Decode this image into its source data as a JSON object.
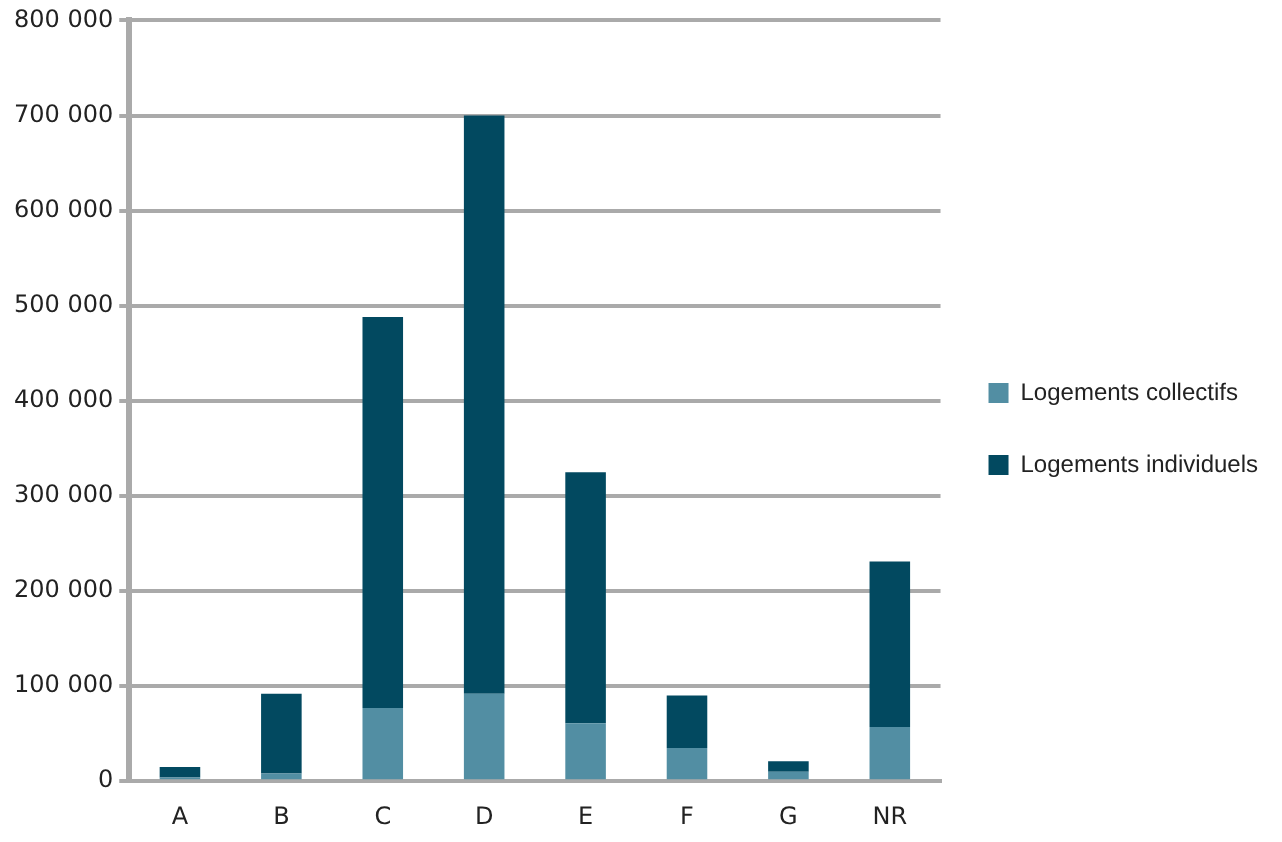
{
  "chart_data": {
    "type": "bar",
    "stacked": true,
    "categories": [
      "A",
      "B",
      "C",
      "D",
      "E",
      "F",
      "G",
      "NR"
    ],
    "series": [
      {
        "name": "Logements collectifs",
        "color": "#528ea3",
        "values": [
          4000,
          8000,
          77000,
          92000,
          61000,
          35000,
          10000,
          57000
        ]
      },
      {
        "name": "Logements individuels",
        "color": "#024960",
        "values": [
          11000,
          84000,
          411000,
          608000,
          264000,
          55000,
          11000,
          174000
        ]
      }
    ],
    "ylim": [
      0,
      800000
    ],
    "yticks": [
      {
        "value": 0,
        "label": "0"
      },
      {
        "value": 100000,
        "label": "100 000"
      },
      {
        "value": 200000,
        "label": "200 000"
      },
      {
        "value": 300000,
        "label": "300 000"
      },
      {
        "value": 400000,
        "label": "400 000"
      },
      {
        "value": 500000,
        "label": "500 000"
      },
      {
        "value": 600000,
        "label": "600 000"
      },
      {
        "value": 700000,
        "label": "700 000"
      },
      {
        "value": 800000,
        "label": "800 000"
      }
    ],
    "grid": "y",
    "legend": "right"
  }
}
